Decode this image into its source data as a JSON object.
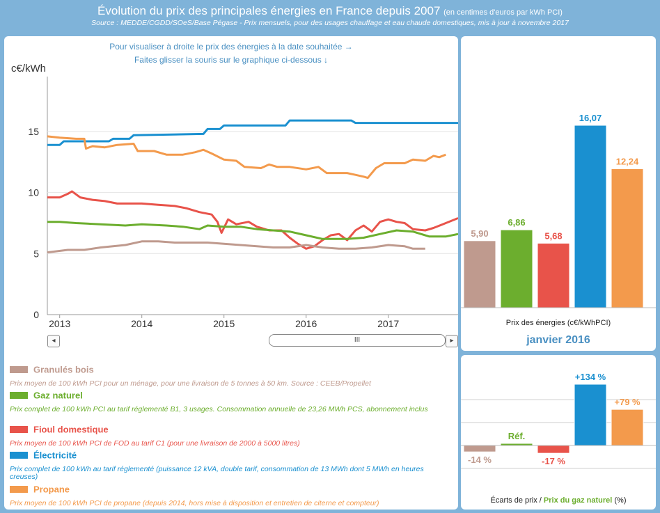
{
  "header": {
    "title": "Évolution du prix des principales énergies en France depuis 2007",
    "title_unit": "(en centimes d'euros par kWh PCI)",
    "source": "Source : MEDDE/CGDD/SOeS/Base Pégase - Prix mensuels, pour des usages chauffage et eau chaude domestiques, mis à jour à novembre 2017"
  },
  "hint": {
    "line1": "Pour visualiser à droite le prix des énergies à la date souhaitée →",
    "line2": "Faites glisser la souris sur le graphique ci-dessous ↓"
  },
  "scrollbar": {
    "left_arrow": "◂",
    "right_arrow": "▸",
    "thumb": "III"
  },
  "legend": [
    {
      "name": "Granulés bois",
      "color": "#bf9a8e",
      "desc": "Prix moyen de 100 kWh PCI pour un ménage, pour une livraison de 5 tonnes à 50 km. Source : CEEB/Propellet"
    },
    {
      "name": "Gaz naturel",
      "color": "#6cae2e",
      "desc": "Prix complet de 100 kWh PCI au tarif réglementé B1, 3 usages. Consommation annuelle de 23,26 MWh PCS, abonnement inclus"
    },
    {
      "name": "Fioul domestique",
      "color": "#e8534a",
      "desc": "Prix moyen de 100 kWh PCI de FOD au tarif C1 (pour une livraison de 2000 à 5000 litres)"
    },
    {
      "name": "Électricité",
      "color": "#1a90d0",
      "desc": "Prix complet de 100 kWh au tarif réglementé (puissance 12 kVA, double tarif, consommation de 13 MWh dont 5 MWh en heures creuses)"
    },
    {
      "name": "Propane",
      "color": "#f39a4c",
      "desc": "Prix moyen de 100 kWh PCI de propane (depuis 2014, hors mise à disposition et entretien de citerne et compteur)"
    }
  ],
  "chart_data": [
    {
      "type": "line",
      "ylabel": "c€/kWh",
      "ylim": [
        0,
        19.5
      ],
      "yticks": [
        0,
        5,
        10,
        15
      ],
      "xlim": [
        2012.85,
        2017.85
      ],
      "xticks": [
        2013,
        2014,
        2015,
        2016,
        2017
      ],
      "series": [
        {
          "name": "Électricité",
          "color": "#1a90d0",
          "points": [
            [
              2012.85,
              13.9
            ],
            [
              2013.0,
              13.9
            ],
            [
              2013.05,
              14.2
            ],
            [
              2013.6,
              14.2
            ],
            [
              2013.65,
              14.4
            ],
            [
              2013.85,
              14.4
            ],
            [
              2013.9,
              14.7
            ],
            [
              2014.75,
              14.8
            ],
            [
              2014.8,
              15.2
            ],
            [
              2014.95,
              15.2
            ],
            [
              2015.0,
              15.5
            ],
            [
              2015.75,
              15.5
            ],
            [
              2015.8,
              15.9
            ],
            [
              2016.55,
              15.9
            ],
            [
              2016.6,
              15.7
            ],
            [
              2017.85,
              15.7
            ]
          ]
        },
        {
          "name": "Propane",
          "color": "#f39a4c",
          "points": [
            [
              2012.85,
              14.6
            ],
            [
              2013.0,
              14.5
            ],
            [
              2013.2,
              14.4
            ],
            [
              2013.3,
              14.4
            ],
            [
              2013.32,
              13.6
            ],
            [
              2013.4,
              13.8
            ],
            [
              2013.55,
              13.7
            ],
            [
              2013.7,
              13.9
            ],
            [
              2013.9,
              14.0
            ],
            [
              2013.95,
              13.4
            ],
            [
              2014.15,
              13.4
            ],
            [
              2014.3,
              13.1
            ],
            [
              2014.5,
              13.1
            ],
            [
              2014.65,
              13.3
            ],
            [
              2014.75,
              13.5
            ],
            [
              2014.85,
              13.2
            ],
            [
              2015.0,
              12.7
            ],
            [
              2015.15,
              12.6
            ],
            [
              2015.25,
              12.1
            ],
            [
              2015.45,
              12.0
            ],
            [
              2015.55,
              12.3
            ],
            [
              2015.65,
              12.1
            ],
            [
              2015.8,
              12.1
            ],
            [
              2016.0,
              11.9
            ],
            [
              2016.15,
              12.1
            ],
            [
              2016.25,
              11.6
            ],
            [
              2016.5,
              11.6
            ],
            [
              2016.7,
              11.3
            ],
            [
              2016.75,
              11.2
            ],
            [
              2016.85,
              12.0
            ],
            [
              2016.95,
              12.4
            ],
            [
              2017.05,
              12.4
            ],
            [
              2017.2,
              12.4
            ],
            [
              2017.3,
              12.7
            ],
            [
              2017.45,
              12.6
            ],
            [
              2017.55,
              13.0
            ],
            [
              2017.62,
              12.9
            ],
            [
              2017.7,
              13.1
            ]
          ]
        },
        {
          "name": "Fioul domestique",
          "color": "#e8534a",
          "points": [
            [
              2012.85,
              9.6
            ],
            [
              2013.0,
              9.6
            ],
            [
              2013.1,
              9.9
            ],
            [
              2013.15,
              10.1
            ],
            [
              2013.25,
              9.6
            ],
            [
              2013.4,
              9.4
            ],
            [
              2013.55,
              9.3
            ],
            [
              2013.7,
              9.1
            ],
            [
              2013.9,
              9.1
            ],
            [
              2014.0,
              9.1
            ],
            [
              2014.2,
              9.0
            ],
            [
              2014.4,
              8.9
            ],
            [
              2014.55,
              8.7
            ],
            [
              2014.7,
              8.4
            ],
            [
              2014.85,
              8.2
            ],
            [
              2014.92,
              7.6
            ],
            [
              2014.97,
              6.7
            ],
            [
              2015.05,
              7.8
            ],
            [
              2015.15,
              7.4
            ],
            [
              2015.3,
              7.6
            ],
            [
              2015.4,
              7.2
            ],
            [
              2015.55,
              6.9
            ],
            [
              2015.7,
              6.9
            ],
            [
              2015.8,
              6.3
            ],
            [
              2015.9,
              5.8
            ],
            [
              2016.0,
              5.4
            ],
            [
              2016.1,
              5.6
            ],
            [
              2016.2,
              6.1
            ],
            [
              2016.3,
              6.5
            ],
            [
              2016.4,
              6.6
            ],
            [
              2016.5,
              6.1
            ],
            [
              2016.6,
              6.9
            ],
            [
              2016.7,
              7.3
            ],
            [
              2016.8,
              6.8
            ],
            [
              2016.9,
              7.6
            ],
            [
              2017.0,
              7.8
            ],
            [
              2017.1,
              7.6
            ],
            [
              2017.2,
              7.5
            ],
            [
              2017.3,
              7.0
            ],
            [
              2017.45,
              6.9
            ],
            [
              2017.55,
              7.1
            ],
            [
              2017.7,
              7.5
            ],
            [
              2017.85,
              7.9
            ]
          ]
        },
        {
          "name": "Gaz naturel",
          "color": "#6cae2e",
          "points": [
            [
              2012.85,
              7.6
            ],
            [
              2013.0,
              7.6
            ],
            [
              2013.2,
              7.5
            ],
            [
              2013.5,
              7.4
            ],
            [
              2013.8,
              7.3
            ],
            [
              2014.0,
              7.4
            ],
            [
              2014.3,
              7.3
            ],
            [
              2014.5,
              7.2
            ],
            [
              2014.7,
              7.0
            ],
            [
              2014.8,
              7.3
            ],
            [
              2015.0,
              7.2
            ],
            [
              2015.2,
              7.2
            ],
            [
              2015.4,
              7.0
            ],
            [
              2015.6,
              6.9
            ],
            [
              2015.8,
              6.8
            ],
            [
              2016.0,
              6.5
            ],
            [
              2016.2,
              6.2
            ],
            [
              2016.5,
              6.2
            ],
            [
              2016.7,
              6.3
            ],
            [
              2016.9,
              6.6
            ],
            [
              2017.1,
              6.9
            ],
            [
              2017.3,
              6.8
            ],
            [
              2017.5,
              6.4
            ],
            [
              2017.7,
              6.4
            ],
            [
              2017.85,
              6.6
            ]
          ]
        },
        {
          "name": "Granulés bois",
          "color": "#bf9a8e",
          "points": [
            [
              2012.85,
              5.1
            ],
            [
              2013.1,
              5.3
            ],
            [
              2013.3,
              5.3
            ],
            [
              2013.5,
              5.5
            ],
            [
              2013.8,
              5.7
            ],
            [
              2014.0,
              6.0
            ],
            [
              2014.2,
              6.0
            ],
            [
              2014.4,
              5.9
            ],
            [
              2014.6,
              5.9
            ],
            [
              2014.8,
              5.9
            ],
            [
              2015.0,
              5.8
            ],
            [
              2015.2,
              5.7
            ],
            [
              2015.4,
              5.6
            ],
            [
              2015.6,
              5.5
            ],
            [
              2015.8,
              5.5
            ],
            [
              2016.0,
              5.7
            ],
            [
              2016.2,
              5.5
            ],
            [
              2016.4,
              5.4
            ],
            [
              2016.6,
              5.4
            ],
            [
              2016.8,
              5.5
            ],
            [
              2017.0,
              5.7
            ],
            [
              2017.2,
              5.6
            ],
            [
              2017.3,
              5.4
            ],
            [
              2017.45,
              5.4
            ]
          ]
        }
      ]
    },
    {
      "type": "bar",
      "title": "janvier 2016",
      "xlabel": "Prix des énergies (c€/kWhPCI)",
      "ylim": [
        0,
        17
      ],
      "categories": [
        "Granulés bois",
        "Gaz naturel",
        "Fioul domestique",
        "Électricité",
        "Propane"
      ],
      "values": [
        5.9,
        6.86,
        5.68,
        16.07,
        12.24
      ],
      "labels": [
        "5,90",
        "6,86",
        "5,68",
        "16,07",
        "12,24"
      ],
      "colors": [
        "#bf9a8e",
        "#6cae2e",
        "#e8534a",
        "#1a90d0",
        "#f39a4c"
      ]
    },
    {
      "type": "bar",
      "xlabel_part1": "Écarts de prix /",
      "xlabel_part2": "Prix du gaz naturel",
      "xlabel_part3": "(%)",
      "ylim": [
        -20,
        140
      ],
      "categories": [
        "Granulés bois",
        "Gaz naturel",
        "Fioul domestique",
        "Électricité",
        "Propane"
      ],
      "values": [
        -14,
        0,
        -17,
        134,
        79
      ],
      "labels": [
        "-14 %",
        "Réf.",
        "-17 %",
        "+134 %",
        "+79 %"
      ],
      "colors": [
        "#bf9a8e",
        "#6cae2e",
        "#e8534a",
        "#1a90d0",
        "#f39a4c"
      ]
    }
  ]
}
